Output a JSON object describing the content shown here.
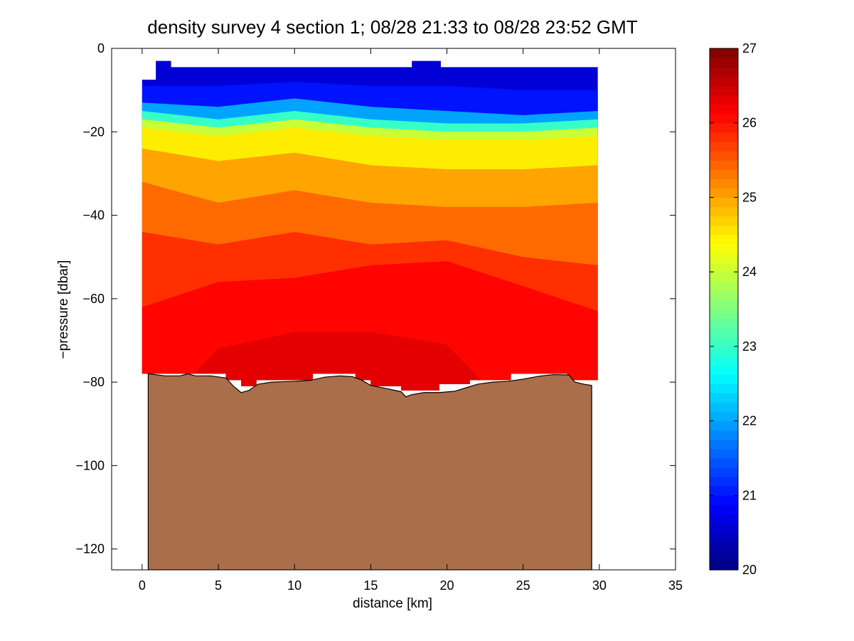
{
  "chart_data": {
    "type": "heatmap",
    "title": "density survey 4 section 1; 08/28 21:33 to 08/28 23:52 GMT",
    "xlabel": "distance [km]",
    "ylabel": "−pressure [dbar]",
    "xlim": [
      -2,
      35
    ],
    "ylim": [
      -125,
      0
    ],
    "xticks": [
      0,
      5,
      10,
      15,
      20,
      25,
      30,
      35
    ],
    "xtick_labels": [
      "0",
      "5",
      "10",
      "15",
      "20",
      "25",
      "30",
      "35"
    ],
    "yticks": [
      0,
      -20,
      -40,
      -60,
      -80,
      -100,
      -120
    ],
    "ytick_labels": [
      "0",
      "−20",
      "−40",
      "−60",
      "−80",
      "−100",
      "−120"
    ],
    "grid": false,
    "colormap": "jet",
    "colorbar": {
      "range": [
        20,
        27
      ],
      "ticks": [
        20,
        21,
        22,
        23,
        24,
        25,
        26,
        27
      ],
      "tick_labels": [
        "20",
        "21",
        "22",
        "23",
        "24",
        "25",
        "26",
        "27"
      ],
      "levels": 56
    },
    "field_extent": {
      "x": [
        0,
        29.9
      ]
    },
    "field_top": [
      [
        0,
        -7.5
      ],
      [
        0.9,
        -7.5
      ],
      [
        0.9,
        -3.0
      ],
      [
        1.9,
        -3.0
      ],
      [
        1.9,
        -4.5
      ],
      [
        17.7,
        -4.5
      ],
      [
        17.7,
        -3.0
      ],
      [
        19.6,
        -3.0
      ],
      [
        19.6,
        -4.5
      ],
      [
        29.9,
        -4.5
      ]
    ],
    "field_bottom": [
      [
        0,
        -78
      ],
      [
        5.5,
        -78
      ],
      [
        5.5,
        -79.5
      ],
      [
        6.5,
        -79.5
      ],
      [
        6.5,
        -81
      ],
      [
        7.5,
        -81
      ],
      [
        7.5,
        -79.5
      ],
      [
        11.2,
        -79.5
      ],
      [
        11.2,
        -78
      ],
      [
        14.0,
        -78
      ],
      [
        14.0,
        -79.5
      ],
      [
        15.0,
        -79.5
      ],
      [
        15.0,
        -81
      ],
      [
        17.0,
        -81
      ],
      [
        17.0,
        -82
      ],
      [
        19.5,
        -82
      ],
      [
        19.5,
        -80.5
      ],
      [
        21.5,
        -80.5
      ],
      [
        21.5,
        -79.5
      ],
      [
        24.2,
        -79.5
      ],
      [
        24.2,
        -78
      ],
      [
        27.9,
        -78
      ],
      [
        27.9,
        -79.5
      ],
      [
        29.9,
        -79.5
      ]
    ],
    "isopycnals": [
      {
        "value": 21.0,
        "depths": [
          [
            0,
            -9
          ],
          [
            5,
            -9
          ],
          [
            10,
            -8
          ],
          [
            15,
            -9
          ],
          [
            20,
            -9
          ],
          [
            25,
            -10
          ],
          [
            29.9,
            -10
          ]
        ]
      },
      {
        "value": 22.0,
        "depths": [
          [
            0,
            -13
          ],
          [
            5,
            -14
          ],
          [
            10,
            -12
          ],
          [
            15,
            -14
          ],
          [
            20,
            -15
          ],
          [
            25,
            -16
          ],
          [
            29.9,
            -15
          ]
        ]
      },
      {
        "value": 23.0,
        "depths": [
          [
            0,
            -15
          ],
          [
            5,
            -17
          ],
          [
            10,
            -15
          ],
          [
            15,
            -17
          ],
          [
            20,
            -18
          ],
          [
            25,
            -18
          ],
          [
            29.9,
            -17
          ]
        ]
      },
      {
        "value": 24.0,
        "depths": [
          [
            0,
            -17
          ],
          [
            5,
            -19
          ],
          [
            10,
            -17
          ],
          [
            15,
            -19
          ],
          [
            20,
            -20
          ],
          [
            25,
            -20
          ],
          [
            29.9,
            -19
          ]
        ]
      },
      {
        "value": 24.5,
        "depths": [
          [
            0,
            -19
          ],
          [
            5,
            -21
          ],
          [
            10,
            -19
          ],
          [
            15,
            -21
          ],
          [
            20,
            -22
          ],
          [
            25,
            -22
          ],
          [
            29.9,
            -21
          ]
        ]
      },
      {
        "value": 25.0,
        "depths": [
          [
            0,
            -24
          ],
          [
            5,
            -27
          ],
          [
            10,
            -25
          ],
          [
            15,
            -28
          ],
          [
            20,
            -29
          ],
          [
            25,
            -29
          ],
          [
            29.9,
            -28
          ]
        ]
      },
      {
        "value": 25.4,
        "depths": [
          [
            0,
            -32
          ],
          [
            5,
            -37
          ],
          [
            10,
            -34
          ],
          [
            15,
            -37
          ],
          [
            20,
            -38
          ],
          [
            25,
            -38
          ],
          [
            29.9,
            -37
          ]
        ]
      },
      {
        "value": 25.8,
        "depths": [
          [
            0,
            -44
          ],
          [
            5,
            -47
          ],
          [
            10,
            -44
          ],
          [
            15,
            -47
          ],
          [
            20,
            -46
          ],
          [
            25,
            -50
          ],
          [
            29.9,
            -52
          ]
        ]
      },
      {
        "value": 26.1,
        "depths": [
          [
            0,
            -62
          ],
          [
            5,
            -56
          ],
          [
            10,
            -55
          ],
          [
            15,
            -52
          ],
          [
            20,
            -51
          ],
          [
            25,
            -57
          ],
          [
            29.9,
            -63
          ]
        ]
      },
      {
        "value": 26.3,
        "depths": [
          [
            0,
            -90
          ],
          [
            5,
            -72
          ],
          [
            10,
            -68
          ],
          [
            15,
            -68
          ],
          [
            20,
            -71
          ],
          [
            25,
            -90
          ],
          [
            29.9,
            -90
          ]
        ]
      }
    ],
    "bathymetry": [
      [
        0.4,
        -78
      ],
      [
        1.5,
        -78.5
      ],
      [
        2.5,
        -78.5
      ],
      [
        3.0,
        -78
      ],
      [
        3.5,
        -78.5
      ],
      [
        4.5,
        -78.5
      ],
      [
        5.5,
        -79
      ],
      [
        6.0,
        -81
      ],
      [
        6.5,
        -82.5
      ],
      [
        7.0,
        -82
      ],
      [
        7.6,
        -80.5
      ],
      [
        8.5,
        -80
      ],
      [
        10.0,
        -79.8
      ],
      [
        11.0,
        -79.6
      ],
      [
        12.0,
        -78.8
      ],
      [
        13.0,
        -78.5
      ],
      [
        13.8,
        -78.7
      ],
      [
        14.4,
        -79.5
      ],
      [
        15.0,
        -80.8
      ],
      [
        16.0,
        -81.5
      ],
      [
        17.0,
        -82.3
      ],
      [
        17.3,
        -83.5
      ],
      [
        17.7,
        -83
      ],
      [
        18.5,
        -82.5
      ],
      [
        19.5,
        -82.5
      ],
      [
        20.5,
        -82.2
      ],
      [
        21.3,
        -81.3
      ],
      [
        22.0,
        -80.5
      ],
      [
        23.0,
        -80
      ],
      [
        24.0,
        -79.8
      ],
      [
        25.0,
        -79.3
      ],
      [
        26.0,
        -78.6
      ],
      [
        27.0,
        -78.2
      ],
      [
        28.0,
        -78.3
      ],
      [
        28.4,
        -80
      ],
      [
        29.0,
        -80.5
      ],
      [
        29.5,
        -80.8
      ],
      [
        29.5,
        -125
      ],
      [
        0.4,
        -125
      ]
    ],
    "colors": {
      "bottom_fill": "#AA6E4A",
      "axes_background": "#FFFFFF",
      "axes_stroke": "#000000"
    }
  }
}
